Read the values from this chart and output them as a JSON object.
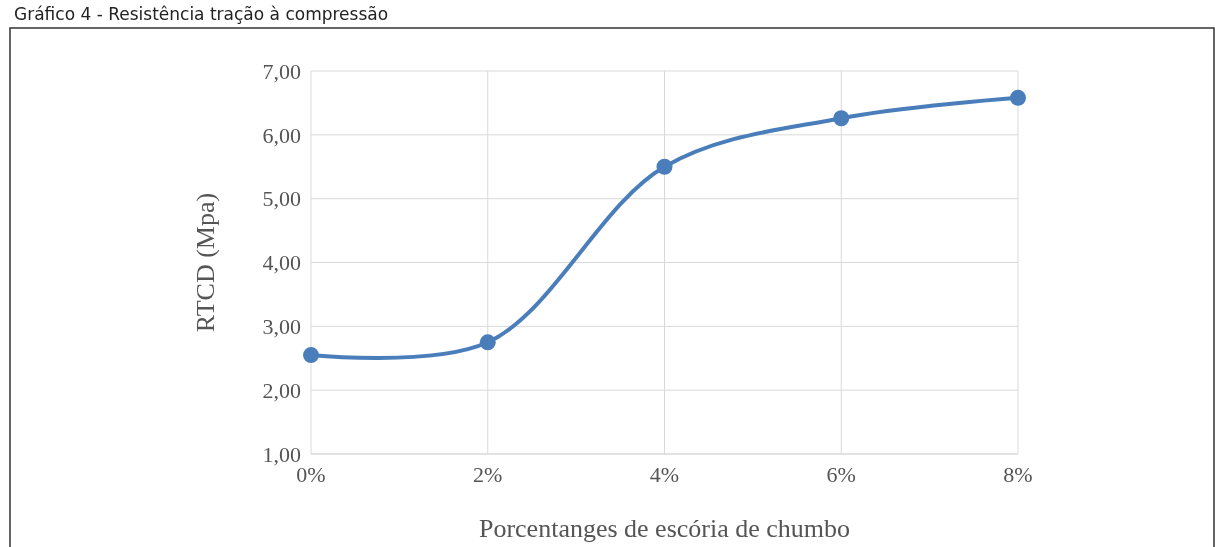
{
  "chart_data": {
    "type": "line",
    "title": "Gráfico 4 - Resistência tração à compressão",
    "xlabel": "Porcentanges de escória de chumbo",
    "ylabel": "RTCD (Mpa)",
    "categories": [
      "0%",
      "2%",
      "4%",
      "6%",
      "8%"
    ],
    "series": [
      {
        "color": "#4a7ebb",
        "values": [
          2.55,
          2.75,
          5.5,
          6.26,
          6.58
        ]
      }
    ],
    "ylim": [
      1,
      7
    ],
    "yticks": [
      {
        "value": 1,
        "label": "1,00"
      },
      {
        "value": 2,
        "label": "2,00"
      },
      {
        "value": 3,
        "label": "3,00"
      },
      {
        "value": 4,
        "label": "4,00"
      },
      {
        "value": 5,
        "label": "5,00"
      },
      {
        "value": 6,
        "label": "6,00"
      },
      {
        "value": 7,
        "label": "7,00"
      }
    ],
    "grid": true,
    "marker": "circle",
    "line_style": "solid"
  }
}
